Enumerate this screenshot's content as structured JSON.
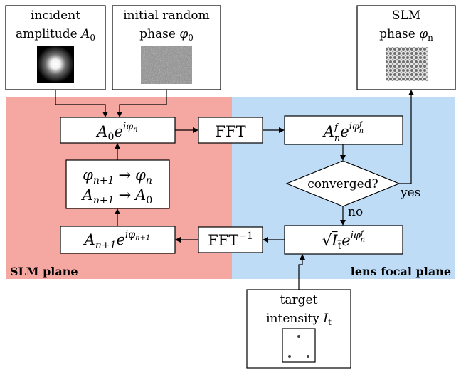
{
  "regions": {
    "slm_plane": {
      "label": "SLM plane",
      "color": "#f4a8a1"
    },
    "focal_plane": {
      "label": "lens focal plane",
      "color": "#bfdcf7"
    }
  },
  "inputs": {
    "incident_amplitude": {
      "line1": "incident",
      "line2": "amplitude",
      "symbol": "A",
      "sub": "0"
    },
    "initial_phase": {
      "line1": "initial random",
      "line2": "phase",
      "symbol": "φ",
      "sub": "0"
    },
    "target_intensity": {
      "line1": "target",
      "line2": "intensity",
      "symbol": "I",
      "sub": "t"
    }
  },
  "output": {
    "line1": "SLM",
    "line2": "phase",
    "symbol": "φ",
    "sub": "n"
  },
  "steps": {
    "combine": {
      "base": "A",
      "base_sub": "0",
      "exp": "iφ",
      "exp_sub": "n"
    },
    "fft": {
      "label": "FFT"
    },
    "focal_field": {
      "base": "A",
      "base_sub": "n",
      "base_sup": "f",
      "exp": "iφ",
      "exp_sub": "n",
      "exp_sup": "f"
    },
    "decision": {
      "label": "converged?",
      "yes": "yes",
      "no": "no"
    },
    "replace_amp": {
      "sqrt": "√",
      "base": "I",
      "base_sub": "t",
      "exp": "iφ",
      "exp_sub": "n",
      "exp_sup": "f"
    },
    "ifft": {
      "label": "FFT",
      "sup": "−1"
    },
    "back_field": {
      "base": "A",
      "base_sub": "n+1",
      "exp": "iφ",
      "exp_sub": "n+1"
    },
    "update": {
      "row1": {
        "a": "φ",
        "a_sub": "n+1",
        "arrow": "→",
        "b": "φ",
        "b_sub": "n"
      },
      "row2": {
        "a": "A",
        "a_sub": "n+1",
        "arrow": "→",
        "b": "A",
        "b_sub": "0"
      }
    }
  }
}
